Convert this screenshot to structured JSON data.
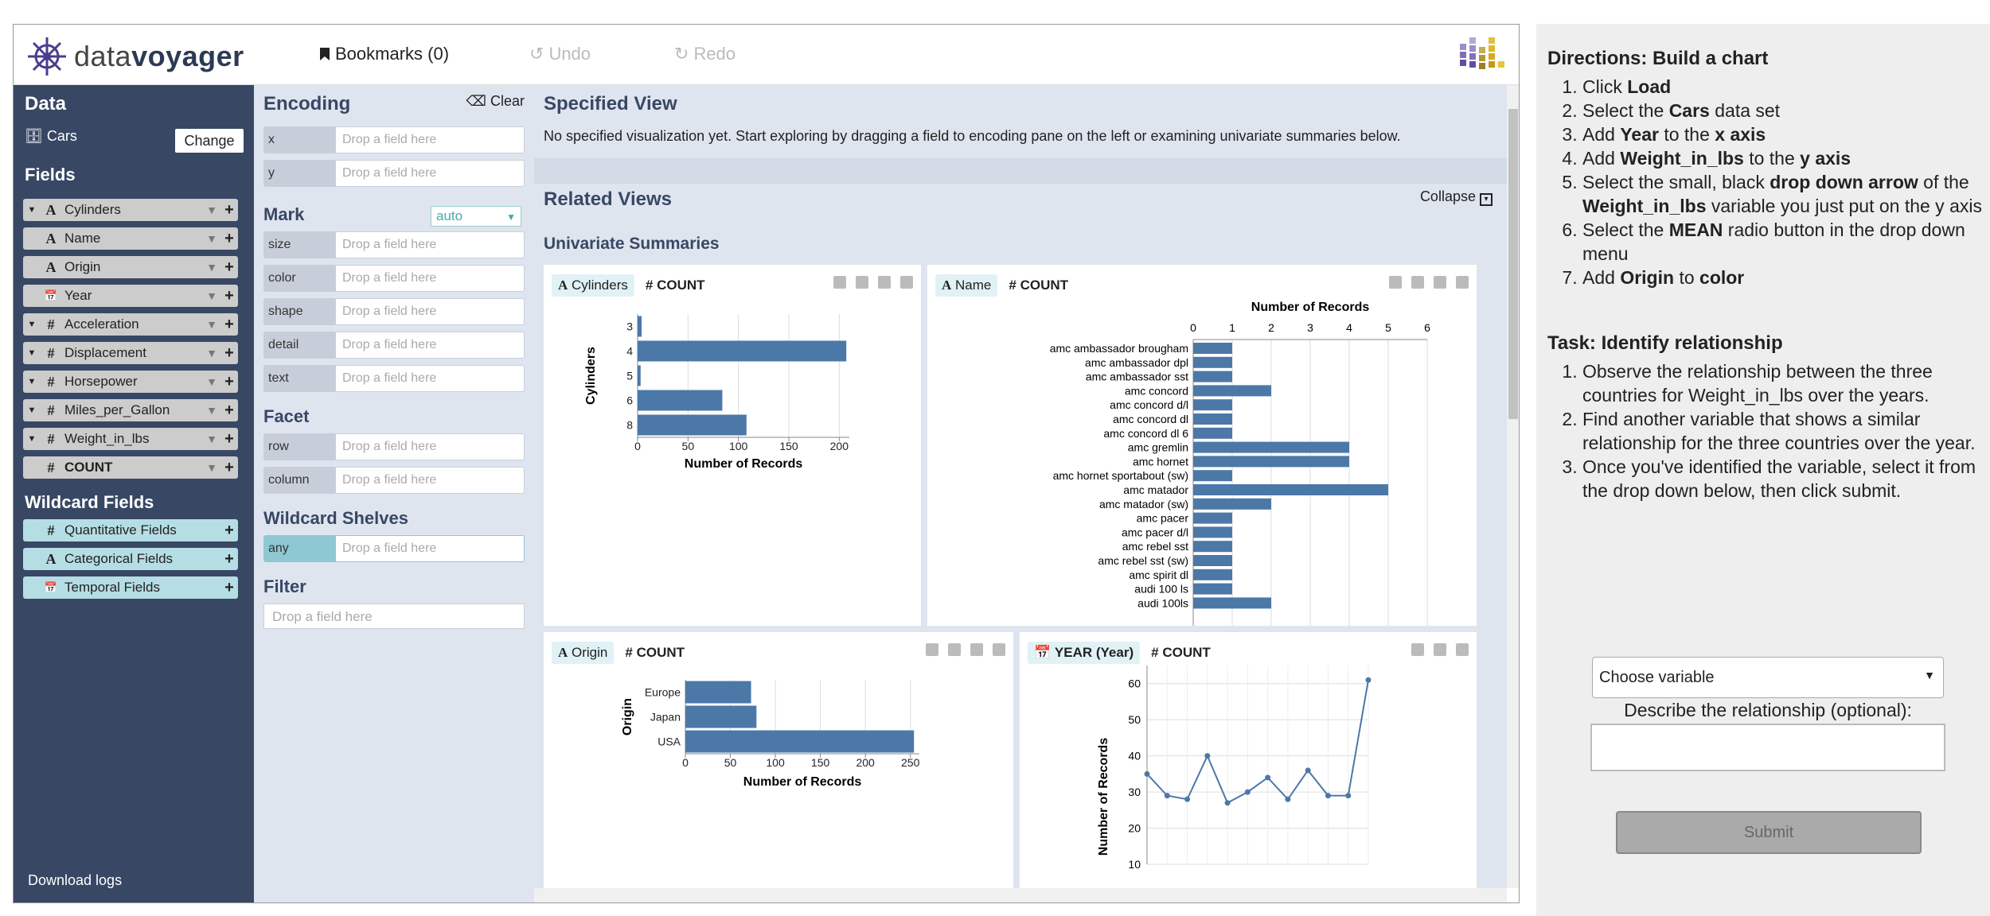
{
  "brand": {
    "logo_light": "data",
    "logo_bold": "voyager"
  },
  "toolbar": {
    "bookmarks": "Bookmarks (0)",
    "undo": "Undo",
    "redo": "Redo"
  },
  "data_panel": {
    "title": "Data",
    "dataset": "Cars",
    "change": "Change",
    "fields_title": "Fields",
    "fields": [
      {
        "name": "Cylinders",
        "type": "A",
        "caret": true
      },
      {
        "name": "Name",
        "type": "A",
        "caret": false
      },
      {
        "name": "Origin",
        "type": "A",
        "caret": false
      },
      {
        "name": "Year",
        "type": "cal",
        "caret": false
      },
      {
        "name": "Acceleration",
        "type": "#",
        "caret": true
      },
      {
        "name": "Displacement",
        "type": "#",
        "caret": true
      },
      {
        "name": "Horsepower",
        "type": "#",
        "caret": true
      },
      {
        "name": "Miles_per_Gallon",
        "type": "#",
        "caret": true
      },
      {
        "name": "Weight_in_lbs",
        "type": "#",
        "caret": true
      },
      {
        "name": "COUNT",
        "type": "#",
        "caret": false
      }
    ],
    "wildcard_title": "Wildcard Fields",
    "wildcards": [
      "Quantitative Fields",
      "Categorical Fields",
      "Temporal Fields"
    ],
    "download": "Download logs"
  },
  "encoding": {
    "title": "Encoding",
    "clear": "Clear",
    "placeholder": "Drop a field here",
    "xy": [
      "x",
      "y"
    ],
    "mark_title": "Mark",
    "mark_value": "auto",
    "mark_channels": [
      "size",
      "color",
      "shape",
      "detail",
      "text"
    ],
    "facet_title": "Facet",
    "facet_channels": [
      "row",
      "column"
    ],
    "wild_title": "Wildcard Shelves",
    "wild_channels": [
      "any"
    ],
    "filter_title": "Filter"
  },
  "specified": {
    "title": "Specified View",
    "message": "No specified visualization yet. Start exploring by dragging a field to encoding pane on the left or examining univariate summaries below."
  },
  "related": {
    "title": "Related Views",
    "collapse": "Collapse",
    "summaries": "Univariate Summaries",
    "count": "COUNT",
    "card_fields": [
      "Cylinders",
      "Name",
      "Origin",
      "YEAR (Year)"
    ]
  },
  "chart_data": [
    {
      "type": "bar",
      "orientation": "horizontal",
      "ylabel": "Cylinders",
      "xlabel": "Number of Records",
      "categories": [
        "3",
        "4",
        "5",
        "6",
        "8"
      ],
      "values": [
        4,
        207,
        3,
        84,
        108
      ],
      "xlim": [
        0,
        210
      ],
      "xticks": [
        0,
        50,
        100,
        150,
        200
      ]
    },
    {
      "type": "bar",
      "orientation": "horizontal",
      "title": "Number of Records",
      "categories": [
        "amc ambassador brougham",
        "amc ambassador dpl",
        "amc ambassador sst",
        "amc concord",
        "amc concord d/l",
        "amc concord dl",
        "amc concord dl 6",
        "amc gremlin",
        "amc hornet",
        "amc hornet sportabout (sw)",
        "amc matador",
        "amc matador (sw)",
        "amc pacer",
        "amc pacer d/l",
        "amc rebel sst",
        "amc rebel sst (sw)",
        "amc spirit dl",
        "audi 100 ls",
        "audi 100ls"
      ],
      "values": [
        1,
        1,
        1,
        2,
        1,
        1,
        1,
        4,
        4,
        1,
        5,
        2,
        1,
        1,
        1,
        1,
        1,
        1,
        2
      ],
      "xlim": [
        0,
        6
      ],
      "xticks": [
        0,
        1,
        2,
        3,
        4,
        5,
        6
      ]
    },
    {
      "type": "bar",
      "orientation": "horizontal",
      "ylabel": "Origin",
      "xlabel": "Number of Records",
      "categories": [
        "Europe",
        "Japan",
        "USA"
      ],
      "values": [
        73,
        79,
        254
      ],
      "xlim": [
        0,
        260
      ],
      "xticks": [
        0,
        50,
        100,
        150,
        200,
        250
      ]
    },
    {
      "type": "line",
      "ylabel": "Number of Records",
      "values": [
        35,
        29,
        28,
        40,
        27,
        30,
        34,
        28,
        36,
        29,
        29,
        61
      ],
      "ylim": [
        10,
        65
      ],
      "yticks": [
        10,
        20,
        30,
        40,
        50,
        60
      ]
    }
  ],
  "colors": {
    "bar": "#4c78a8",
    "sidebar": "#384764",
    "panel": "#dfe5ef"
  },
  "directions": {
    "title": "Directions: Build a chart",
    "steps": [
      [
        [
          "Click ",
          false
        ],
        [
          "Load",
          true
        ]
      ],
      [
        [
          "Select the ",
          false
        ],
        [
          "Cars",
          true
        ],
        [
          " data set",
          false
        ]
      ],
      [
        [
          "Add ",
          false
        ],
        [
          "Year",
          true
        ],
        [
          " to the ",
          false
        ],
        [
          "x axis",
          true
        ]
      ],
      [
        [
          "Add ",
          false
        ],
        [
          "Weight_in_lbs",
          true
        ],
        [
          " to the ",
          false
        ],
        [
          "y axis",
          true
        ]
      ],
      [
        [
          "Select the small, black ",
          false
        ],
        [
          "drop down arrow",
          true
        ],
        [
          " of the ",
          false
        ],
        [
          "Weight_in_lbs",
          true
        ],
        [
          " variable you just put on the y axis",
          false
        ]
      ],
      [
        [
          "Select the ",
          false
        ],
        [
          "MEAN",
          true
        ],
        [
          " radio button in the drop down menu",
          false
        ]
      ],
      [
        [
          "Add ",
          false
        ],
        [
          "Origin",
          true
        ],
        [
          " to ",
          false
        ],
        [
          "color",
          true
        ]
      ]
    ],
    "task_title": "Task: Identify relationship",
    "task_steps": [
      "Observe the relationship between the three countries for Weight_in_lbs over the years.",
      "Find another variable that shows a similar relationship for the three countries over the year.",
      "Once you've identified the variable, select it from the drop down below, then click submit."
    ],
    "select_value": "Choose variable",
    "describe": "Describe the relationship (optional):",
    "submit": "Submit"
  }
}
